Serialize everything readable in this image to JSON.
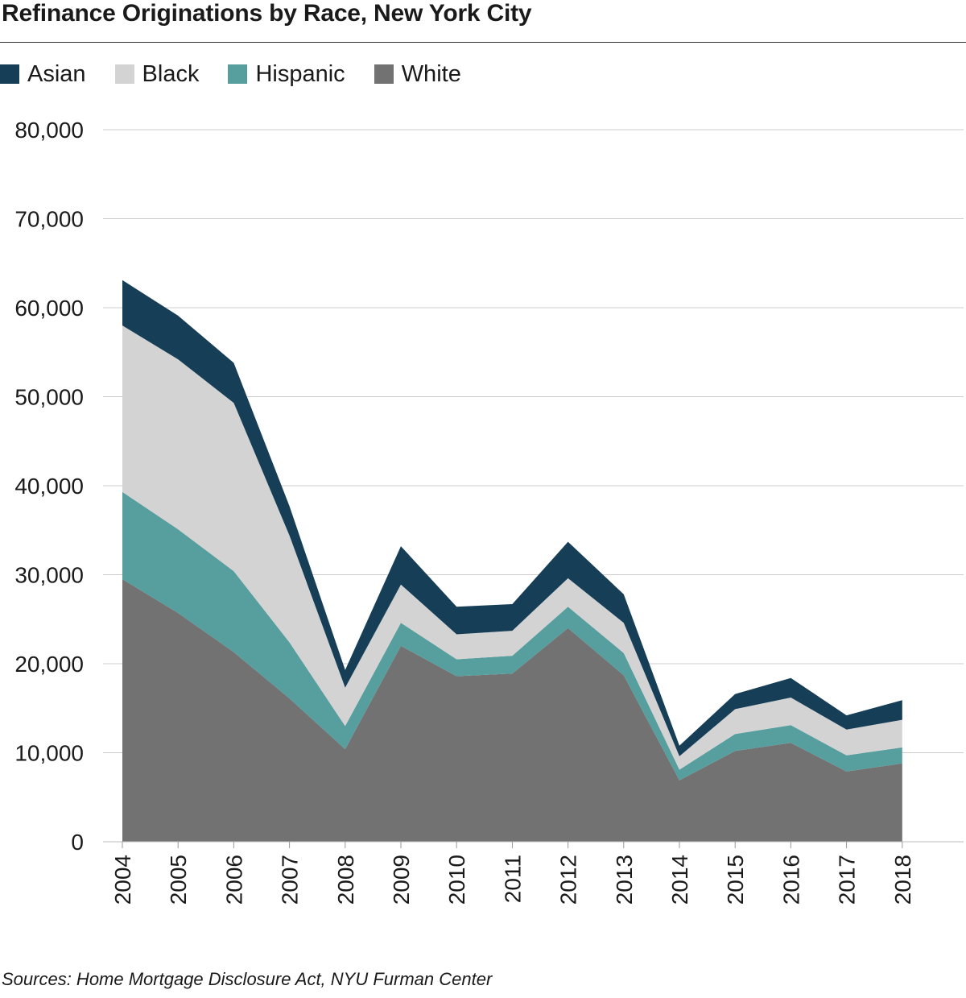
{
  "title": "Refinance Originations by Race, New York City",
  "source": "Sources: Home Mortgage Disclosure Act, NYU Furman Center",
  "colors": {
    "Asian": "#163f57",
    "Black": "#d3d3d3",
    "Hispanic": "#579e9e",
    "White": "#727272",
    "grid": "#cccccc",
    "text": "#1a1a1a"
  },
  "chart_data": {
    "type": "area",
    "stacked": true,
    "title": "Refinance Originations by Race, New York City",
    "xlabel": "",
    "ylabel": "",
    "ylim": [
      0,
      80000
    ],
    "yticks": [
      0,
      10000,
      20000,
      30000,
      40000,
      50000,
      60000,
      70000,
      80000
    ],
    "ytick_labels": [
      "0",
      "10,000",
      "20,000",
      "30,000",
      "40,000",
      "50,000",
      "60,000",
      "70,000",
      "80,000"
    ],
    "grid": true,
    "legend_position": "top-left",
    "categories": [
      "2004",
      "2005",
      "2006",
      "2007",
      "2008",
      "2009",
      "2010",
      "2011",
      "2012",
      "2013",
      "2014",
      "2015",
      "2016",
      "2017",
      "2018"
    ],
    "series": [
      {
        "name": "White",
        "values": [
          29500,
          25700,
          21300,
          16100,
          10400,
          22000,
          18600,
          18900,
          24000,
          18700,
          6900,
          10200,
          11100,
          7900,
          8800
        ]
      },
      {
        "name": "Hispanic",
        "values": [
          9800,
          9400,
          9100,
          6300,
          2600,
          2600,
          1900,
          2000,
          2400,
          2500,
          1200,
          1900,
          2000,
          1800,
          1800
        ]
      },
      {
        "name": "Black",
        "values": [
          18700,
          19100,
          18900,
          12000,
          4300,
          4300,
          2800,
          2800,
          3200,
          3400,
          1500,
          2800,
          3100,
          2900,
          3100
        ]
      },
      {
        "name": "Asian",
        "values": [
          5100,
          4900,
          4500,
          3300,
          2000,
          4300,
          3100,
          3000,
          4100,
          3200,
          1200,
          1700,
          2200,
          1600,
          2200
        ]
      }
    ]
  }
}
